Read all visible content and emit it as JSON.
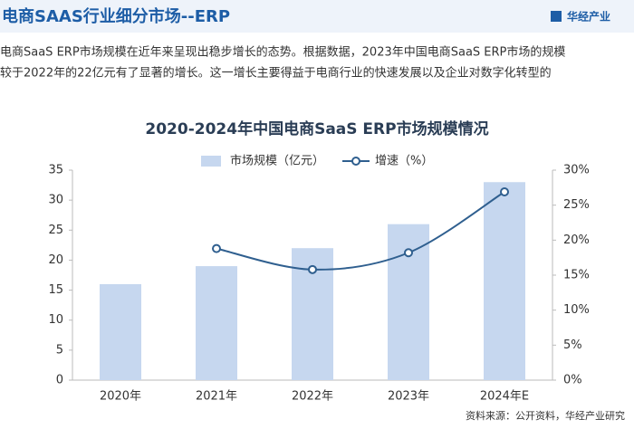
{
  "header": {
    "title": "电商SAAS行业细分市场--ERP",
    "logo": "华经产业"
  },
  "paragraph": [
    "电商SaaS ERP市场规模在近年来呈现出稳步增长的态势。根据数据，2023年中国电商SaaS ERP市场的规模",
    "较于2022年的22亿元有了显著的增长。这一增长主要得益于电商行业的快速发展以及企业对数字化转型的"
  ],
  "chart_data": {
    "type": "bar-line",
    "title": "2020-2024年中国电商SaaS ERP市场规模情况",
    "categories": [
      "2020年",
      "2021年",
      "2022年",
      "2023年",
      "2024年E"
    ],
    "series": [
      {
        "name": "市场规模（亿元）",
        "color": "#c6d7ef",
        "type": "bar",
        "values": [
          16,
          19,
          22,
          26,
          33
        ]
      },
      {
        "name": "增速（%）",
        "color": "#2f5f8f",
        "type": "line",
        "axis": "y2",
        "values": [
          null,
          18.8,
          15.8,
          18.2,
          26.9
        ]
      }
    ],
    "ylim": [
      0,
      35
    ],
    "yticks": [
      0,
      5,
      10,
      15,
      20,
      25,
      30,
      35
    ],
    "y2lim": [
      0,
      30
    ],
    "y2ticks": [
      {
        "value": 0,
        "label": "0%"
      },
      {
        "value": 5,
        "label": "5%"
      },
      {
        "value": 10,
        "label": "10%"
      },
      {
        "value": 15,
        "label": "15%"
      },
      {
        "value": 20,
        "label": "20%"
      },
      {
        "value": 25,
        "label": "25%"
      },
      {
        "value": 30,
        "label": "30%"
      }
    ],
    "grid": false
  },
  "source": "资料来源：公开资料，华经产业研究"
}
